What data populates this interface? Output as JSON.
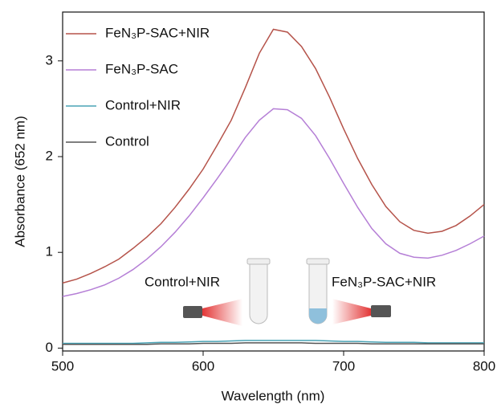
{
  "chart_data": {
    "type": "line",
    "x_label": "Wavelength (nm)",
    "y_label": "Absorbance (652 nm)",
    "x": [
      500,
      510,
      520,
      530,
      540,
      550,
      560,
      570,
      580,
      590,
      600,
      610,
      620,
      630,
      640,
      650,
      660,
      670,
      680,
      690,
      700,
      710,
      720,
      730,
      740,
      750,
      760,
      770,
      780,
      790,
      800
    ],
    "series": [
      {
        "name": "FeN₃P-SAC+NIR",
        "color": "#b5534a",
        "values": [
          0.68,
          0.72,
          0.78,
          0.85,
          0.93,
          1.04,
          1.16,
          1.3,
          1.47,
          1.66,
          1.87,
          2.12,
          2.38,
          2.72,
          3.08,
          3.33,
          3.3,
          3.15,
          2.92,
          2.62,
          2.29,
          1.98,
          1.71,
          1.48,
          1.32,
          1.23,
          1.2,
          1.22,
          1.28,
          1.38,
          1.5
        ]
      },
      {
        "name": "FeN₃P-SAC",
        "color": "#b57fd6",
        "values": [
          0.54,
          0.57,
          0.61,
          0.66,
          0.73,
          0.82,
          0.93,
          1.06,
          1.21,
          1.38,
          1.57,
          1.77,
          1.98,
          2.2,
          2.38,
          2.5,
          2.49,
          2.4,
          2.22,
          1.98,
          1.72,
          1.47,
          1.25,
          1.09,
          0.99,
          0.95,
          0.94,
          0.97,
          1.02,
          1.09,
          1.17
        ]
      },
      {
        "name": "Control+NIR",
        "color": "#4aa3b5",
        "values": [
          0.05,
          0.05,
          0.05,
          0.05,
          0.05,
          0.05,
          0.055,
          0.06,
          0.06,
          0.065,
          0.07,
          0.07,
          0.075,
          0.08,
          0.08,
          0.08,
          0.08,
          0.08,
          0.08,
          0.075,
          0.07,
          0.07,
          0.065,
          0.06,
          0.06,
          0.06,
          0.055,
          0.055,
          0.055,
          0.055,
          0.055
        ]
      },
      {
        "name": "Control",
        "color": "#555555",
        "values": [
          0.04,
          0.04,
          0.04,
          0.04,
          0.04,
          0.04,
          0.04,
          0.045,
          0.045,
          0.045,
          0.05,
          0.05,
          0.05,
          0.055,
          0.055,
          0.055,
          0.055,
          0.055,
          0.05,
          0.05,
          0.05,
          0.05,
          0.045,
          0.045,
          0.045,
          0.045,
          0.045,
          0.045,
          0.045,
          0.045,
          0.045
        ]
      }
    ],
    "xlim": [
      500,
      800
    ],
    "ylim": [
      -0.03,
      3.51
    ],
    "xticks": [
      500,
      600,
      700,
      800
    ],
    "yticks": [
      0,
      1,
      2,
      3
    ],
    "legend": "upper left",
    "annotations": [
      "Control+NIR",
      "FeN₃P-SAC+NIR"
    ]
  }
}
